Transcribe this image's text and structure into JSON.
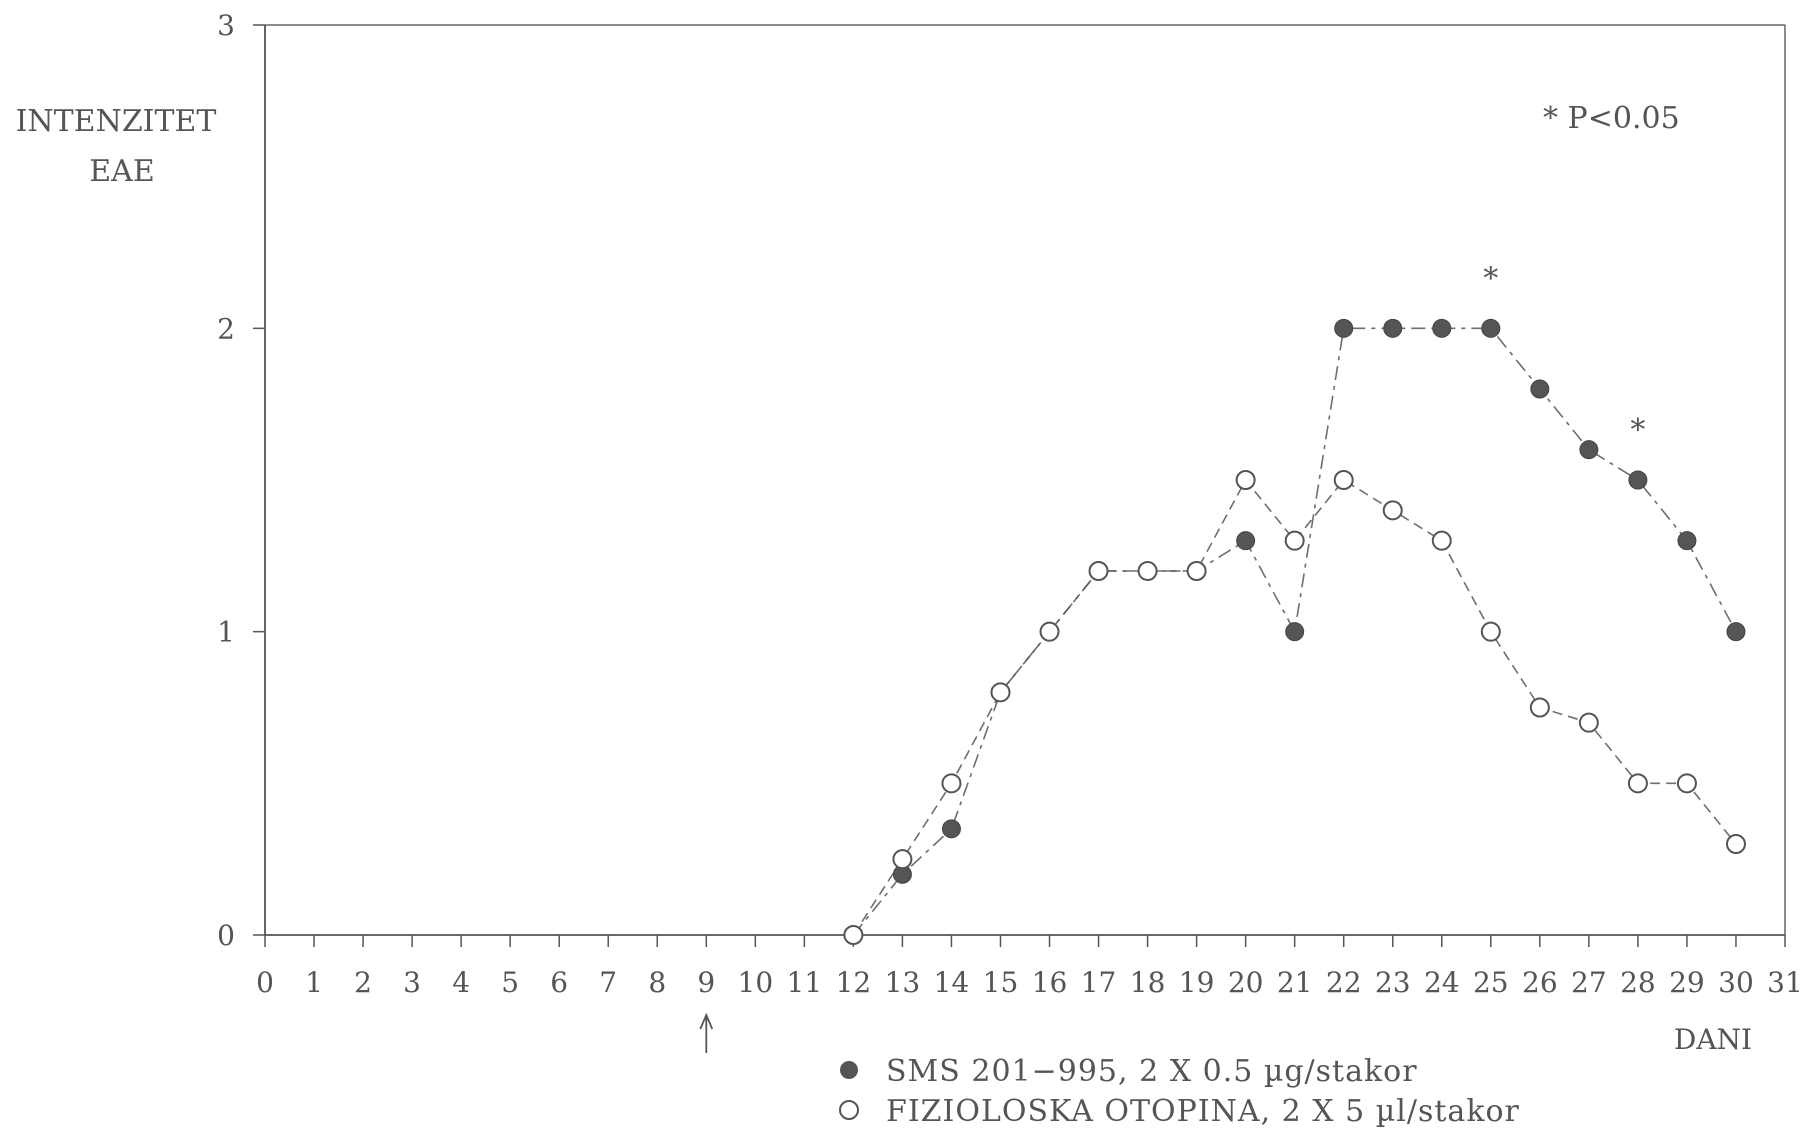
{
  "chart_data": {
    "type": "line",
    "y_title_line1": "INTENZITET",
    "y_title_line2": "EAE",
    "xlabel": "DANI",
    "x_ticks": [
      0,
      1,
      2,
      3,
      4,
      5,
      6,
      7,
      8,
      9,
      10,
      11,
      12,
      13,
      14,
      15,
      16,
      17,
      18,
      19,
      20,
      21,
      22,
      23,
      24,
      25,
      26,
      27,
      28,
      29,
      30,
      31
    ],
    "y_ticks": [
      0,
      1,
      2,
      3
    ],
    "xlim": [
      0,
      31
    ],
    "ylim": [
      0,
      3
    ],
    "grid": false,
    "treatment_day": 9,
    "significance_note": "* P<0.05",
    "significance_marker": "*",
    "significant_days": [
      25,
      28
    ],
    "series": [
      {
        "name": "SMS 201−995, 2 X 0.5 µg/stakor",
        "marker": "filled-circle",
        "color": "#555555",
        "x": [
          12,
          13,
          14,
          15,
          16,
          17,
          18,
          19,
          20,
          21,
          22,
          23,
          24,
          25,
          26,
          27,
          28,
          29,
          30
        ],
        "y": [
          0,
          0.2,
          0.35,
          0.8,
          1.0,
          1.2,
          1.2,
          1.2,
          1.3,
          1.0,
          2.0,
          2.0,
          2.0,
          2.0,
          1.8,
          1.6,
          1.5,
          1.3,
          1.0
        ]
      },
      {
        "name": "FIZIOLOSKA OTOPINA, 2 X 5 µl/stakor",
        "marker": "open-circle",
        "color": "#555555",
        "x": [
          12,
          13,
          14,
          15,
          16,
          17,
          18,
          19,
          20,
          21,
          22,
          23,
          24,
          25,
          26,
          27,
          28,
          29,
          30
        ],
        "y": [
          0,
          0.25,
          0.5,
          0.8,
          1.0,
          1.2,
          1.2,
          1.2,
          1.5,
          1.3,
          1.5,
          1.4,
          1.3,
          1.0,
          0.75,
          0.7,
          0.5,
          0.5,
          0.3
        ]
      }
    ]
  }
}
